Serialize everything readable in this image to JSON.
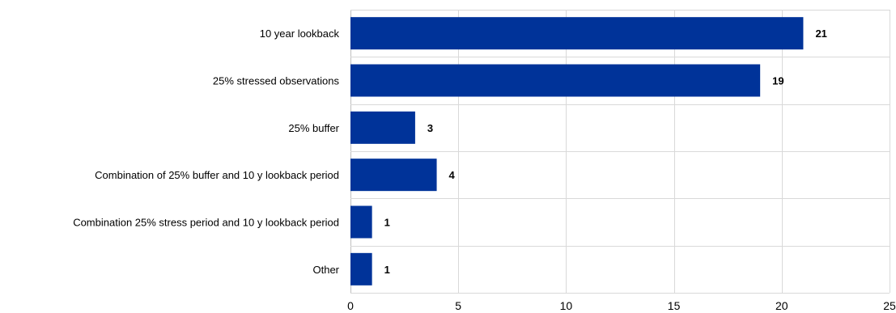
{
  "chart_data": {
    "type": "bar",
    "orientation": "horizontal",
    "title": "",
    "xlabel": "",
    "ylabel": "",
    "categories": [
      "10 year lookback",
      "25% stressed observations",
      "25% buffer",
      "Combination of 25% buffer and 10 y lookback period",
      "Combination 25% stress period and 10 y lookback period",
      "Other"
    ],
    "values": [
      21,
      19,
      3,
      4,
      1,
      1
    ],
    "data_labels": [
      "21",
      "19",
      "3",
      "4",
      "1",
      "1"
    ],
    "xlim": [
      0,
      25
    ],
    "x_ticks": [
      0,
      5,
      10,
      15,
      20,
      25
    ],
    "x_tick_labels": [
      "0",
      "5",
      "10",
      "15",
      "20",
      "25"
    ],
    "grid": true,
    "legend": "none",
    "bar_color": "#003399"
  }
}
